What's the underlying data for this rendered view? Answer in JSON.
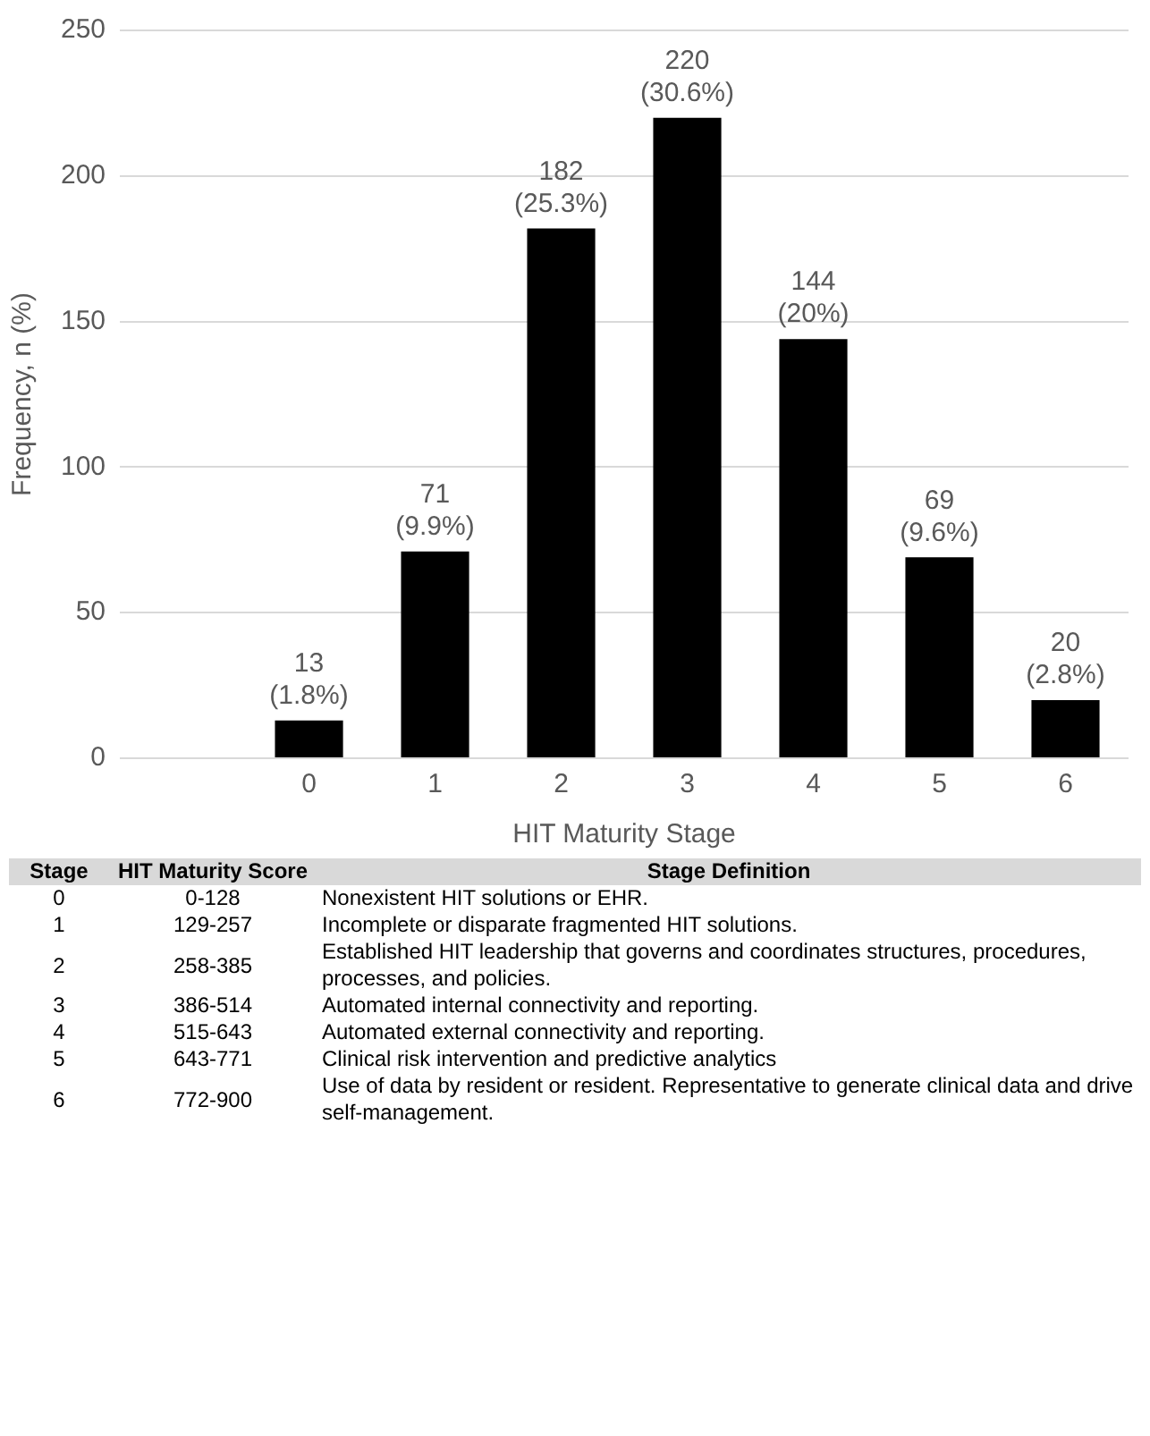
{
  "chart_data": {
    "type": "bar",
    "xlabel": "HIT Maturity Stage",
    "ylabel": "Frequency, n (%)",
    "categories": [
      null,
      "0",
      "1",
      "2",
      "3",
      "4",
      "5",
      "6"
    ],
    "values": [
      null,
      13,
      71,
      182,
      220,
      144,
      69,
      20
    ],
    "value_labels": [
      null,
      "13\n(1.8%)",
      "71\n(9.9%)",
      "182\n(25.3%)",
      "220\n(30.6%)",
      "144\n(20%)",
      "69\n(9.6%)",
      "20\n(2.8%)"
    ],
    "color": "#000000",
    "ylim": [
      0,
      250
    ],
    "yticks": [
      0,
      50,
      100,
      150,
      200,
      250
    ],
    "grid": "y",
    "legend": false,
    "annotations": [
      "Stage",
      "HIT Maturity Score",
      "Stage Definition",
      "0",
      "0-128",
      "Nonexistent HIT solutions or EHR.",
      "1",
      "129-257",
      "Incomplete or disparate fragmented HIT solutions.",
      "2",
      "258-385",
      "Established HIT leadership that governs and coordinates structures, procedures, processes, and policies.",
      "3",
      "386-514",
      "Automated internal connectivity and reporting.",
      "4",
      "515-643",
      "Automated external connectivity and reporting.",
      "5",
      "643-771",
      "Clinical risk intervention and predictive analytics",
      "6",
      "772-900",
      "Use of data by resident or resident. Representative to generate clinical data and drive self-management."
    ]
  }
}
